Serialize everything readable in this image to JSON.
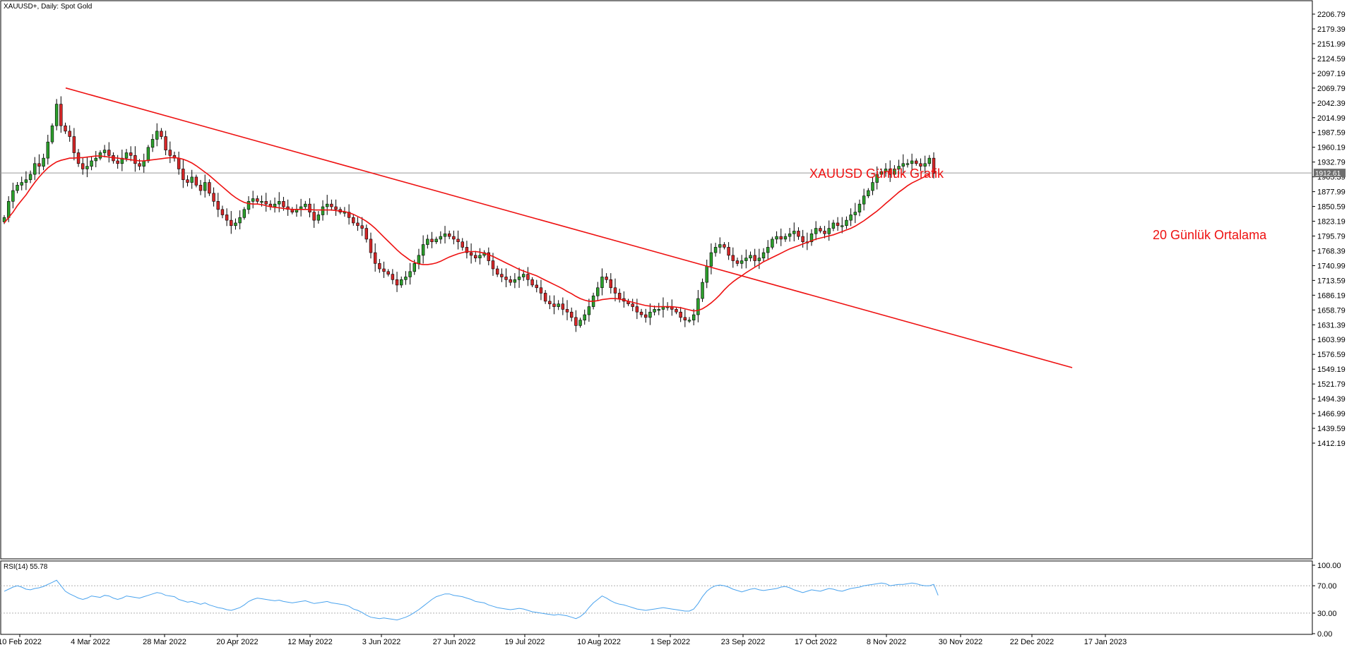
{
  "header": {
    "symbol_label": "XAUUSD+, Daily:  Spot Gold"
  },
  "annotations": {
    "title_label": "XAUUSD Günlük Grafik",
    "ma_label": "20 Günlük Ortalama"
  },
  "colors": {
    "bull": "#2ca02c",
    "bear": "#d62728",
    "wick": "#000000",
    "trendline": "#ee1111",
    "ma": "#ee1111",
    "rsi_line": "#4aa3ee",
    "price_tag_bg": "#6f6f6f",
    "price_line": "#9a9a9a"
  },
  "chart_data": [
    {
      "type": "candlestick",
      "title": "XAUUSD Günlük Grafik",
      "y_tick_labels": [
        "2206.79",
        "2179.39",
        "2151.99",
        "2124.59",
        "2097.19",
        "2069.79",
        "2042.39",
        "2014.99",
        "1987.59",
        "1960.19",
        "1932.79",
        "1905.39",
        "1877.99",
        "1850.59",
        "1823.19",
        "1795.79",
        "1768.39",
        "1740.99",
        "1713.59",
        "1686.19",
        "1658.79",
        "1631.39",
        "1603.99",
        "1576.59",
        "1549.19",
        "1521.79",
        "1494.39",
        "1466.99",
        "1439.59",
        "1412.19"
      ],
      "x_tick_labels": [
        "10 Feb 2022",
        "4 Mar 2022",
        "28 Mar 2022",
        "20 Apr 2022",
        "12 May 2022",
        "3 Jun 2022",
        "27 Jun 2022",
        "19 Jul 2022",
        "10 Aug 2022",
        "1 Sep 2022",
        "23 Sep 2022",
        "17 Oct 2022",
        "8 Nov 2022",
        "30 Nov 2022",
        "22 Dec 2022",
        "17 Jan 2023"
      ],
      "ylim": [
        1395,
        2220
      ],
      "current_price": "1912.61",
      "closes": [
        1830,
        1860,
        1880,
        1890,
        1895,
        1900,
        1910,
        1930,
        1925,
        1940,
        1970,
        2000,
        2040,
        2000,
        1990,
        1980,
        1950,
        1930,
        1920,
        1925,
        1935,
        1940,
        1950,
        1955,
        1945,
        1935,
        1930,
        1940,
        1950,
        1945,
        1930,
        1925,
        1935,
        1960,
        1975,
        1990,
        1980,
        1955,
        1945,
        1940,
        1920,
        1900,
        1895,
        1905,
        1890,
        1880,
        1895,
        1875,
        1860,
        1845,
        1835,
        1825,
        1815,
        1820,
        1830,
        1845,
        1860,
        1865,
        1860,
        1860,
        1855,
        1850,
        1855,
        1860,
        1850,
        1845,
        1840,
        1845,
        1850,
        1855,
        1840,
        1825,
        1835,
        1850,
        1855,
        1850,
        1845,
        1840,
        1840,
        1830,
        1820,
        1815,
        1810,
        1790,
        1765,
        1745,
        1735,
        1730,
        1725,
        1715,
        1705,
        1715,
        1720,
        1730,
        1745,
        1760,
        1780,
        1790,
        1785,
        1790,
        1795,
        1800,
        1795,
        1790,
        1785,
        1775,
        1765,
        1760,
        1755,
        1760,
        1765,
        1750,
        1735,
        1725,
        1720,
        1715,
        1710,
        1715,
        1720,
        1725,
        1715,
        1705,
        1700,
        1690,
        1675,
        1670,
        1665,
        1670,
        1660,
        1655,
        1645,
        1630,
        1640,
        1650,
        1665,
        1685,
        1700,
        1720,
        1715,
        1700,
        1690,
        1680,
        1675,
        1670,
        1665,
        1655,
        1650,
        1645,
        1655,
        1660,
        1660,
        1665,
        1665,
        1660,
        1655,
        1645,
        1640,
        1640,
        1650,
        1680,
        1710,
        1740,
        1765,
        1775,
        1780,
        1775,
        1760,
        1750,
        1745,
        1750,
        1755,
        1760,
        1750,
        1755,
        1765,
        1775,
        1790,
        1795,
        1790,
        1795,
        1800,
        1805,
        1795,
        1785,
        1785,
        1800,
        1810,
        1805,
        1800,
        1810,
        1820,
        1815,
        1815,
        1825,
        1835,
        1840,
        1855,
        1870,
        1880,
        1895,
        1910,
        1915,
        1920,
        1910,
        1920,
        1925,
        1930,
        1930,
        1935,
        1930,
        1925,
        1930,
        1940,
        1912
      ],
      "moving_average": {
        "name": "20 Günlük Ortalama",
        "values": [
          1820,
          1830,
          1840,
          1852,
          1862,
          1872,
          1884,
          1895,
          1905,
          1914,
          1922,
          1928,
          1933,
          1936,
          1938,
          1940,
          1940,
          1941,
          1941,
          1942,
          1943,
          1944,
          1944,
          1943,
          1942,
          1941,
          1940,
          1939,
          1938,
          1937,
          1936,
          1935,
          1935,
          1936,
          1937,
          1938,
          1939,
          1940,
          1941,
          1941,
          1940,
          1938,
          1935,
          1931,
          1926,
          1920,
          1914,
          1908,
          1901,
          1894,
          1887,
          1880,
          1873,
          1867,
          1862,
          1858,
          1856,
          1855,
          1855,
          1854,
          1852,
          1850,
          1849,
          1848,
          1847,
          1846,
          1845,
          1845,
          1845,
          1845,
          1845,
          1844,
          1844,
          1844,
          1844,
          1844,
          1843,
          1842,
          1841,
          1839,
          1836,
          1832,
          1828,
          1823,
          1817,
          1810,
          1802,
          1794,
          1786,
          1778,
          1770,
          1763,
          1757,
          1751,
          1747,
          1744,
          1743,
          1743,
          1744,
          1746,
          1749,
          1753,
          1757,
          1760,
          1763,
          1765,
          1767,
          1767,
          1767,
          1766,
          1764,
          1761,
          1758,
          1754,
          1750,
          1746,
          1742,
          1738,
          1734,
          1731,
          1728,
          1725,
          1722,
          1718,
          1714,
          1710,
          1706,
          1702,
          1698,
          1693,
          1689,
          1684,
          1680,
          1677,
          1675,
          1675,
          1676,
          1678,
          1679,
          1680,
          1680,
          1679,
          1677,
          1675,
          1673,
          1671,
          1669,
          1667,
          1666,
          1665,
          1665,
          1665,
          1665,
          1665,
          1664,
          1663,
          1661,
          1659,
          1657,
          1658,
          1661,
          1666,
          1672,
          1679,
          1687,
          1696,
          1704,
          1711,
          1717,
          1722,
          1728,
          1733,
          1738,
          1743,
          1748,
          1752,
          1756,
          1760,
          1764,
          1768,
          1772,
          1775,
          1778,
          1781,
          1784,
          1787,
          1790,
          1792,
          1794,
          1796,
          1798,
          1801,
          1804,
          1807,
          1810,
          1814,
          1819,
          1824,
          1830,
          1836,
          1842,
          1849,
          1856,
          1863,
          1870,
          1877,
          1883,
          1889,
          1894,
          1898,
          1902,
          1906,
          1910
        ]
      },
      "trendline": {
        "start": [
          "4 Mar 2022",
          2070
        ],
        "end": [
          "9 Jan 2023",
          1552
        ]
      }
    },
    {
      "type": "line",
      "title": "RSI(14) 55.78",
      "y_tick_labels": [
        "100.00",
        "70.00",
        "30.00",
        "0.00"
      ],
      "ylim": [
        0,
        100
      ],
      "levels": [
        70,
        30
      ],
      "values": [
        62,
        65,
        68,
        70,
        68,
        65,
        64,
        66,
        67,
        69,
        72,
        75,
        78,
        70,
        62,
        58,
        55,
        52,
        50,
        52,
        55,
        54,
        53,
        56,
        55,
        52,
        50,
        52,
        55,
        54,
        53,
        52,
        54,
        56,
        58,
        60,
        59,
        56,
        55,
        54,
        50,
        48,
        46,
        47,
        45,
        43,
        45,
        42,
        40,
        38,
        37,
        35,
        34,
        36,
        38,
        42,
        47,
        50,
        52,
        51,
        50,
        49,
        48,
        49,
        47,
        46,
        45,
        46,
        47,
        48,
        46,
        44,
        45,
        46,
        47,
        45,
        44,
        43,
        42,
        40,
        36,
        34,
        31,
        27,
        24,
        23,
        22,
        23,
        22,
        21,
        20,
        22,
        24,
        27,
        31,
        35,
        40,
        45,
        50,
        54,
        56,
        58,
        58,
        56,
        55,
        54,
        52,
        50,
        47,
        46,
        45,
        42,
        40,
        38,
        37,
        36,
        35,
        36,
        37,
        36,
        34,
        32,
        31,
        30,
        29,
        28,
        27,
        28,
        27,
        26,
        24,
        22,
        25,
        30,
        38,
        45,
        50,
        55,
        52,
        48,
        45,
        43,
        42,
        40,
        38,
        36,
        35,
        34,
        35,
        36,
        37,
        38,
        37,
        36,
        35,
        34,
        33,
        33,
        36,
        44,
        54,
        62,
        67,
        70,
        71,
        70,
        68,
        65,
        63,
        61,
        63,
        65,
        66,
        64,
        63,
        64,
        65,
        66,
        68,
        69,
        67,
        64,
        62,
        60,
        62,
        64,
        63,
        62,
        64,
        66,
        65,
        63,
        62,
        64,
        66,
        67,
        68,
        70,
        71,
        72,
        73,
        74,
        73,
        70,
        71,
        72,
        72,
        73,
        74,
        73,
        71,
        70,
        70,
        72,
        56
      ]
    }
  ]
}
